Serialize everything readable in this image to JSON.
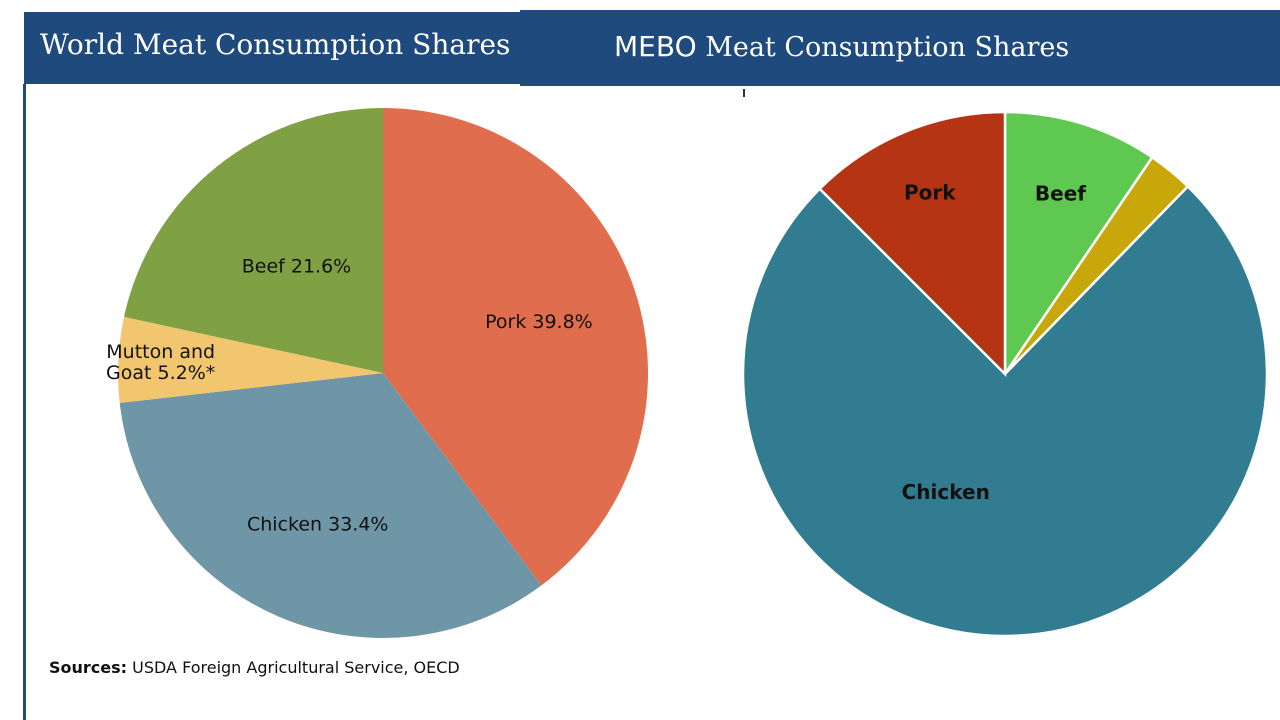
{
  "header": {
    "left_title": "World Meat Consumption Shares",
    "right_title_brand": "MEBO",
    "right_title_rest": " Meat Consumption Shares"
  },
  "sources": {
    "label": "Sources:",
    "text": " USDA Foreign Agricultural Service, OECD"
  },
  "chart_data": [
    {
      "type": "pie",
      "title": "World Meat Consumption Shares",
      "slices": [
        {
          "name": "Pork",
          "value": 39.8,
          "label": [
            "Pork 39.8%"
          ],
          "color": "#e06e4e"
        },
        {
          "name": "Chicken",
          "value": 33.4,
          "label": [
            "Chicken 33.4%"
          ],
          "color": "#6f96a6"
        },
        {
          "name": "Mutton and Goat",
          "value": 5.2,
          "label": [
            "Mutton and",
            "Goat 5.2%*"
          ],
          "color": "#f2c66e"
        },
        {
          "name": "Beef",
          "value": 21.6,
          "label": [
            "Beef 21.6%"
          ],
          "color": "#7fa144"
        }
      ]
    },
    {
      "type": "pie",
      "title": "MEBO Meat Consumption Shares",
      "slices": [
        {
          "name": "Beef",
          "value": 9.5,
          "label": [
            "Beef"
          ],
          "color": "#5ec850"
        },
        {
          "name": "",
          "value": 2.8,
          "label": [],
          "color": "#c8a70a"
        },
        {
          "name": "Chicken",
          "value": 75.2,
          "label": [
            "Chicken"
          ],
          "color": "#327c92"
        },
        {
          "name": "Pork",
          "value": 12.5,
          "label": [
            "Pork"
          ],
          "color": "#b53414"
        }
      ]
    }
  ]
}
